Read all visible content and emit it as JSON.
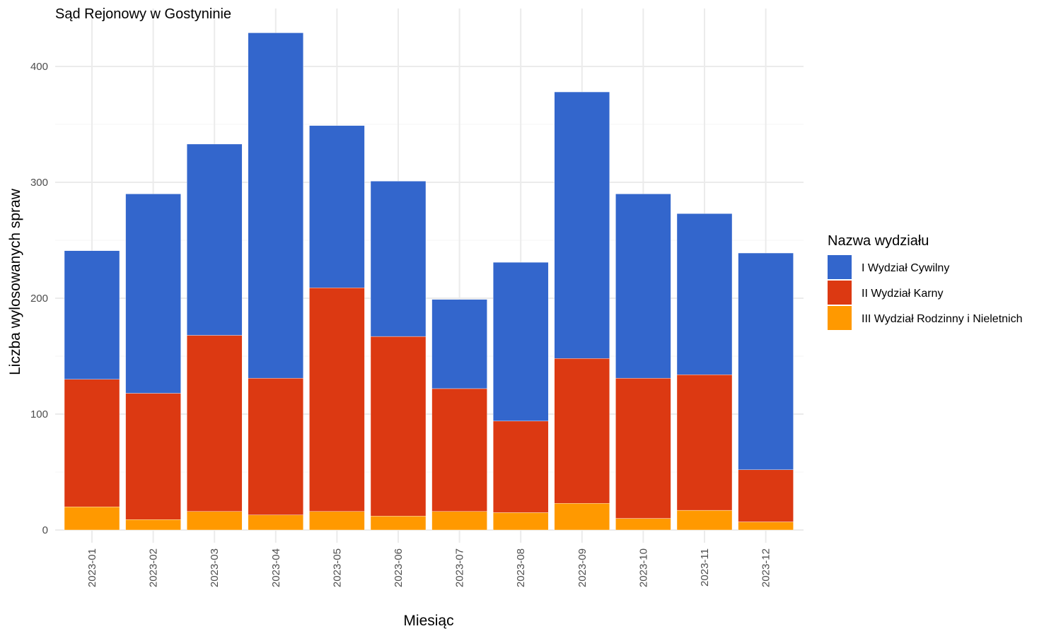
{
  "chart_data": {
    "type": "bar",
    "stacked": true,
    "title": "Sąd Rejonowy w Gostyninie",
    "xlabel": "Miesiąc",
    "ylabel": "Liczba wylosowanych spraw",
    "ylim": [
      0,
      430
    ],
    "yticks": [
      0,
      100,
      200,
      300,
      400
    ],
    "grid": true,
    "legend": {
      "title": "Nazwa wydziału",
      "position": "right"
    },
    "categories": [
      "2023-01",
      "2023-02",
      "2023-03",
      "2023-04",
      "2023-05",
      "2023-06",
      "2023-07",
      "2023-08",
      "2023-09",
      "2023-10",
      "2023-11",
      "2023-12"
    ],
    "series": [
      {
        "name": "III Wydział Rodzinny i Nieletnich",
        "color": "#ff9900",
        "values": [
          20,
          9,
          16,
          13,
          16,
          12,
          16,
          15,
          23,
          10,
          17,
          7
        ]
      },
      {
        "name": "II Wydział Karny",
        "color": "#dc3912",
        "values": [
          110,
          109,
          152,
          118,
          193,
          155,
          106,
          79,
          125,
          121,
          117,
          45
        ]
      },
      {
        "name": "I Wydział Cywilny",
        "color": "#3366cc",
        "values": [
          111,
          172,
          165,
          298,
          140,
          134,
          77,
          137,
          230,
          159,
          139,
          187
        ]
      }
    ],
    "legend_order": [
      "I Wydział Cywilny",
      "II Wydział Karny",
      "III Wydział Rodzinny i Nieletnich"
    ]
  }
}
